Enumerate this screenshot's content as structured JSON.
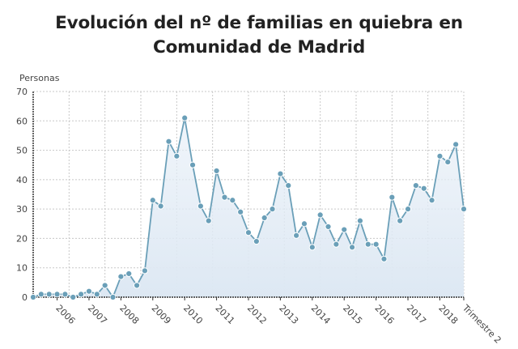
{
  "chart_data": {
    "type": "area",
    "title": "Evolución del nº de familias en quiebra en Comunidad de Madrid",
    "ylabel": "Personas",
    "xlabel": "",
    "ylim": [
      0,
      70
    ],
    "yticks": [
      0,
      10,
      20,
      30,
      40,
      50,
      60,
      70
    ],
    "grid": true,
    "legend": "none",
    "xtick_labels": [
      "2006",
      "2007",
      "2008",
      "2009",
      "2010",
      "2011",
      "2012",
      "2013",
      "2014",
      "2015",
      "2016",
      "2017",
      "2018",
      "Trimestre 2"
    ],
    "values": [
      0,
      1,
      1,
      1,
      1,
      0,
      1,
      2,
      1,
      4,
      0,
      7,
      8,
      4,
      9,
      33,
      31,
      53,
      48,
      61,
      45,
      31,
      26,
      43,
      34,
      33,
      29,
      22,
      19,
      27,
      30,
      42,
      38,
      21,
      25,
      17,
      28,
      24,
      18,
      23,
      17,
      26,
      18,
      18,
      13,
      34,
      26,
      30,
      38,
      37,
      33,
      48,
      46,
      52,
      30
    ],
    "colors": {
      "line": "#6a9fb8",
      "marker": "#6a9fb8",
      "fill_top": "#e6eef7",
      "fill_bottom": "#dde8f3",
      "grid": "#c8c8c8"
    }
  }
}
